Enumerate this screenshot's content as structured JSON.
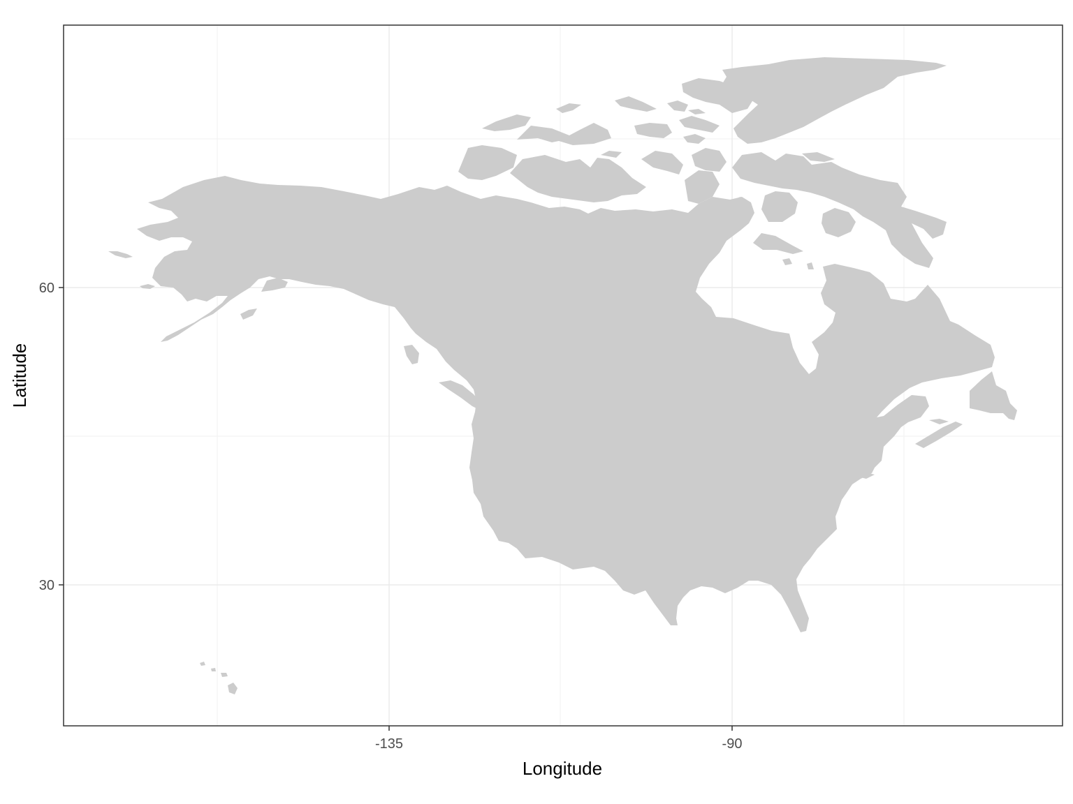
{
  "chart_data": {
    "type": "map",
    "title": "",
    "xlabel": "Longitude",
    "ylabel": "Latitude",
    "x_ticks": [
      {
        "value": -135,
        "label": "-135"
      },
      {
        "value": -90,
        "label": "-90"
      }
    ],
    "y_ticks": [
      {
        "value": 30,
        "label": "30"
      },
      {
        "value": 60,
        "label": "60"
      }
    ],
    "x_minor_breaks": [
      -157.5,
      -112.5,
      -67.5
    ],
    "y_minor_breaks": [
      45,
      75
    ],
    "xlim": [
      -177.5,
      -46.5
    ],
    "ylim": [
      14.5,
      85.2
    ],
    "grid": true,
    "theme": "bw",
    "fill_color": "#cccccc",
    "regions": [
      "Canada",
      "United States",
      "Alaska",
      "Hawaii",
      "Greenland",
      "Arctic Archipelago",
      "Newfoundland"
    ]
  }
}
